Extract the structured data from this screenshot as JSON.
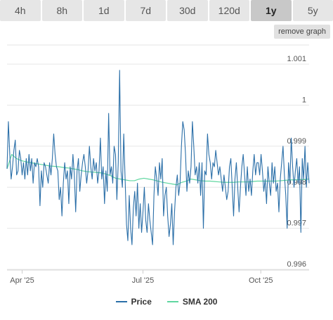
{
  "tabs": [
    {
      "label": "4h",
      "active": false
    },
    {
      "label": "8h",
      "active": false
    },
    {
      "label": "1d",
      "active": false
    },
    {
      "label": "7d",
      "active": false
    },
    {
      "label": "30d",
      "active": false
    },
    {
      "label": "120d",
      "active": false
    },
    {
      "label": "1y",
      "active": true
    },
    {
      "label": "5y",
      "active": false
    }
  ],
  "remove_graph_label": "remove graph",
  "colors": {
    "price": "#2b6fa8",
    "sma": "#5fd6a0",
    "grid": "#e6e6e6",
    "tick_text": "#555555"
  },
  "chart_data": {
    "type": "line",
    "x_tick_labels": [
      "Apr '25",
      "Jul '25",
      "Oct '25"
    ],
    "y_ticks": [
      0.996,
      0.997,
      0.998,
      0.999,
      1,
      1.001
    ],
    "y_tick_labels": [
      "0.996",
      "0.997",
      "0.998",
      "0.999",
      "1",
      "1.001"
    ],
    "ylim": [
      0.996,
      1.0015
    ],
    "grid": true,
    "legend_position": "bottom",
    "series": [
      {
        "name": "Price",
        "values": [
          0.99845,
          0.9996,
          0.9988,
          0.9982,
          0.9985,
          0.9989,
          0.99915,
          0.9983,
          0.9984,
          0.9989,
          0.9987,
          0.9983,
          0.9986,
          0.9982,
          0.9987,
          0.9983,
          0.9988,
          0.9984,
          0.9987,
          0.9981,
          0.9986,
          0.9985,
          0.9987,
          0.9985,
          0.99755,
          0.9984,
          0.998,
          0.9986,
          0.9985,
          0.9983,
          0.9981,
          0.9986,
          0.9983,
          0.9987,
          0.9993,
          0.9988,
          0.9985,
          0.9984,
          0.9977,
          0.998,
          0.9973,
          0.9981,
          0.9986,
          0.9982,
          0.9984,
          0.9976,
          0.9985,
          0.9982,
          0.9988,
          0.9983,
          0.9974,
          0.9984,
          0.9987,
          0.9979,
          0.9983,
          0.9986,
          0.9988,
          0.9985,
          0.9981,
          0.9984,
          0.999,
          0.9985,
          0.9982,
          0.9987,
          0.9984,
          0.9986,
          0.9981,
          0.9984,
          0.9992,
          0.9982,
          0.9985,
          0.9976,
          0.9984,
          0.9979,
          0.9998,
          0.9983,
          0.9985,
          0.9981,
          0.999,
          0.9988,
          0.9977,
          0.9986,
          1.00085,
          0.9984,
          0.998,
          0.9993,
          0.9982,
          0.9971,
          0.9967,
          0.9978,
          0.997,
          0.9966,
          0.9975,
          0.9979,
          0.9973,
          0.9981,
          0.997,
          0.9976,
          0.9969,
          0.9974,
          0.998,
          0.9972,
          0.9969,
          0.9976,
          0.9972,
          0.9969,
          0.9966,
          0.9978,
          0.9985,
          0.9982,
          0.9978,
          0.9986,
          0.9982,
          0.9987,
          0.9973,
          0.9978,
          0.998,
          0.9973,
          0.9968,
          0.9971,
          0.9976,
          0.9966,
          0.9974,
          0.998,
          0.9983,
          0.9978,
          0.9981,
          0.999,
          0.9996,
          0.9994,
          0.9988,
          0.9979,
          0.9984,
          0.9981,
          0.9985,
          0.9996,
          0.999,
          0.9983,
          0.9985,
          0.9981,
          0.9986,
          0.9978,
          0.9986,
          0.997,
          0.9984,
          0.9983,
          0.9993,
          0.9988,
          0.9986,
          0.9982,
          0.9986,
          0.9985,
          0.9989,
          0.9986,
          0.9983,
          0.9985,
          0.9982,
          0.9979,
          0.9983,
          0.998,
          0.9977,
          0.9979,
          0.9985,
          0.9987,
          0.998,
          0.9973,
          0.9982,
          0.9986,
          0.998,
          0.9974,
          0.998,
          0.9985,
          0.9988,
          0.9983,
          0.9978,
          0.9985,
          0.9979,
          0.9982,
          0.9978,
          0.9984,
          0.9988,
          0.9983,
          0.9986,
          0.9986,
          0.9983,
          0.9988,
          0.9984,
          0.9979,
          0.9982,
          0.9976,
          0.9985,
          0.9981,
          0.9978,
          0.9986,
          0.9981,
          0.9985,
          0.9979,
          0.9981,
          0.9974,
          0.9982,
          0.9986,
          0.999,
          0.9983,
          0.9978,
          0.997,
          0.9986,
          0.9981,
          0.9992,
          0.9985,
          0.998,
          0.9984,
          0.9987,
          0.9981,
          0.9985,
          0.9969,
          0.9987,
          0.9982,
          0.999,
          0.998,
          0.9986,
          0.9981
        ]
      },
      {
        "name": "SMA 200",
        "values": [
          0.99845,
          0.9988,
          0.9987,
          0.99865,
          0.99862,
          0.9986,
          0.99858,
          0.99856,
          0.99854,
          0.99852,
          0.99851,
          0.9985,
          0.99848,
          0.99847,
          0.99845,
          0.99843,
          0.9984,
          0.99838,
          0.99837,
          0.99836,
          0.99835,
          0.99832,
          0.99828,
          0.99822,
          0.9982,
          0.99818,
          0.99816,
          0.99816,
          0.9982,
          0.99822,
          0.9982,
          0.99818,
          0.99815,
          0.99812,
          0.9981,
          0.99808,
          0.99806,
          0.99812,
          0.99815,
          0.9982,
          0.99818,
          0.99816,
          0.99815,
          0.99815,
          0.99814,
          0.99813,
          0.99812,
          0.99812,
          0.99812,
          0.99813,
          0.99813,
          0.99813,
          0.99814,
          0.99815,
          0.99815,
          0.99815,
          0.99815,
          0.99815,
          0.99816,
          0.99817,
          0.99818,
          0.99818,
          0.99819,
          0.99819,
          0.9982
        ]
      }
    ]
  }
}
